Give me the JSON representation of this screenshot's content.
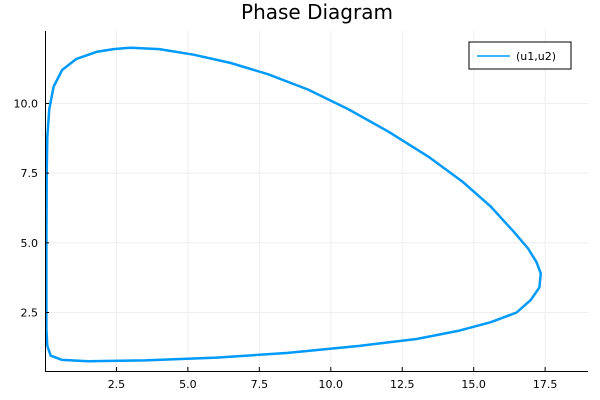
{
  "chart_data": {
    "type": "line",
    "title": "Phase Diagram",
    "xlabel": "",
    "ylabel": "",
    "xlim": [
      0,
      19
    ],
    "ylim": [
      0.4,
      12.6
    ],
    "xticks": [
      2.5,
      5.0,
      7.5,
      10.0,
      12.5,
      15.0,
      17.5
    ],
    "yticks": [
      2.5,
      5.0,
      7.5,
      10.0
    ],
    "xtick_labels": [
      "2.5",
      "5.0",
      "7.5",
      "10.0",
      "12.5",
      "15.0",
      "17.5"
    ],
    "ytick_labels": [
      "2.5",
      "5.0",
      "7.5",
      "10.0"
    ],
    "grid": true,
    "legend_position": "top-right",
    "series": [
      {
        "name": "(u1,u2)",
        "color": "#009AFA",
        "x": [
          0.05,
          0.05,
          0.06,
          0.08,
          0.15,
          0.3,
          0.6,
          1.1,
          1.8,
          2.4,
          3.0,
          4.0,
          5.2,
          6.5,
          7.8,
          9.2,
          10.6,
          12.0,
          13.4,
          14.6,
          15.6,
          16.4,
          16.9,
          17.2,
          17.35,
          17.3,
          17.0,
          16.5,
          15.6,
          14.5,
          13.0,
          11.0,
          8.5,
          6.0,
          3.5,
          1.5,
          0.6,
          0.2,
          0.08,
          0.05,
          0.05
        ],
        "y": [
          2.5,
          5.0,
          7.5,
          8.8,
          9.8,
          10.6,
          11.2,
          11.6,
          11.85,
          11.95,
          12.0,
          11.95,
          11.75,
          11.45,
          11.05,
          10.5,
          9.8,
          9.0,
          8.1,
          7.2,
          6.3,
          5.4,
          4.8,
          4.3,
          3.9,
          3.4,
          2.95,
          2.5,
          2.15,
          1.85,
          1.55,
          1.3,
          1.05,
          0.88,
          0.78,
          0.75,
          0.8,
          0.95,
          1.3,
          1.9,
          2.5
        ]
      }
    ]
  }
}
